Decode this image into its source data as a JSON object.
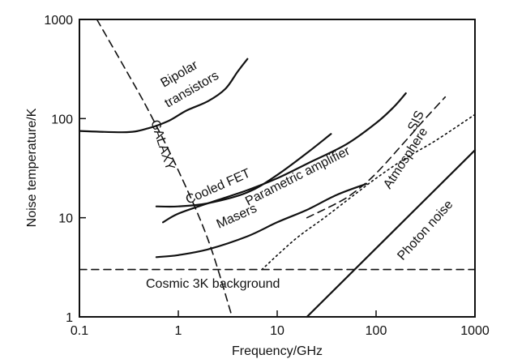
{
  "chart_data": {
    "type": "line",
    "title": "",
    "xlabel": "Frequency/GHz",
    "ylabel": "Noise temperature/K",
    "xscale": "log",
    "yscale": "log",
    "xlim": [
      0.1,
      1000
    ],
    "ylim": [
      1,
      1000
    ],
    "x_ticks": [
      0.1,
      1,
      10,
      100,
      1000
    ],
    "x_tick_labels": [
      "0.1",
      "1",
      "10",
      "100",
      "1000"
    ],
    "y_ticks": [
      1,
      10,
      100,
      1000
    ],
    "y_tick_labels": [
      "1",
      "10",
      "100",
      "1000"
    ],
    "grid": false,
    "legend": "none",
    "series": [
      {
        "key": "bipolar",
        "name": "Bipolar transistors",
        "style": "solid",
        "x": [
          0.1,
          0.3,
          0.5,
          0.8,
          1.2,
          2,
          3,
          4,
          5
        ],
        "y": [
          75,
          73,
          80,
          95,
          120,
          150,
          200,
          300,
          400
        ]
      },
      {
        "key": "galaxy",
        "name": "GALAXY",
        "style": "dashed",
        "x": [
          0.15,
          0.3,
          0.5,
          1,
          2,
          3.5
        ],
        "y": [
          1000,
          300,
          120,
          30,
          6,
          1
        ]
      },
      {
        "key": "cooledfet",
        "name": "Cooled FET",
        "style": "solid",
        "x": [
          0.6,
          1,
          2,
          5,
          10,
          20,
          35
        ],
        "y": [
          13,
          13,
          14,
          18,
          27,
          45,
          70
        ]
      },
      {
        "key": "paramp",
        "name": "Parametric amplifier",
        "style": "solid",
        "x": [
          0.7,
          1,
          2,
          5,
          10,
          20,
          50,
          100,
          150,
          200
        ],
        "y": [
          9,
          11,
          14,
          19,
          25,
          35,
          55,
          90,
          130,
          180
        ]
      },
      {
        "key": "masers",
        "name": "Masers",
        "style": "solid",
        "x": [
          0.6,
          1,
          2,
          5,
          10,
          20,
          40,
          80
        ],
        "y": [
          4,
          4.2,
          4.8,
          6.5,
          9,
          12,
          17,
          22
        ]
      },
      {
        "key": "sis",
        "name": "SIS",
        "style": "dashed",
        "x": [
          20,
          40,
          60,
          100,
          200,
          300,
          500
        ],
        "y": [
          10,
          14,
          18,
          28,
          60,
          95,
          165
        ]
      },
      {
        "key": "atmosphere",
        "name": "Atmosphere",
        "style": "dotted",
        "x": [
          7,
          15,
          30,
          60,
          100,
          200,
          400,
          1000
        ],
        "y": [
          3,
          6,
          10,
          17,
          25,
          40,
          60,
          110
        ]
      },
      {
        "key": "photon",
        "name": "Photon noise",
        "style": "solid",
        "x": [
          20,
          1000
        ],
        "y": [
          1,
          48
        ]
      },
      {
        "key": "cosmic",
        "name": "Cosmic 3K background",
        "style": "dashed",
        "x": [
          0.1,
          1000
        ],
        "y": [
          3,
          3
        ]
      }
    ]
  }
}
